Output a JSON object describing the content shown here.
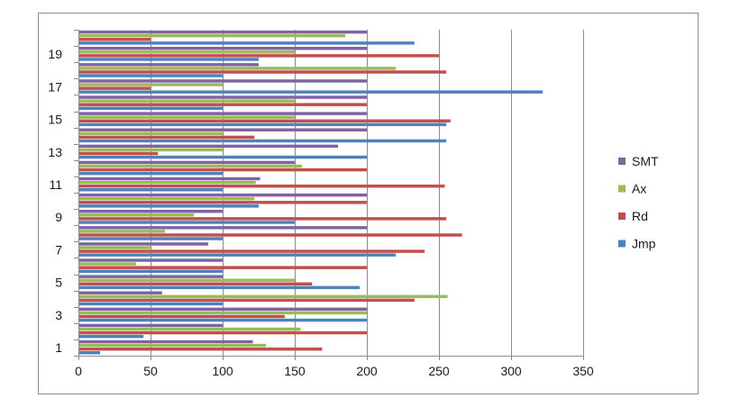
{
  "chart_data": {
    "type": "bar",
    "orientation": "horizontal",
    "title": "",
    "xlabel": "",
    "ylabel": "",
    "xlim": [
      0,
      350
    ],
    "x_ticks": [
      0,
      50,
      100,
      150,
      200,
      250,
      300,
      350
    ],
    "categories": [
      "1",
      "2",
      "3",
      "4",
      "5",
      "6",
      "7",
      "8",
      "9",
      "10",
      "11",
      "12",
      "13",
      "14",
      "15",
      "16",
      "17",
      "18",
      "19",
      "20"
    ],
    "y_tick_labels": [
      "1",
      "3",
      "5",
      "7",
      "9",
      "11",
      "13",
      "15",
      "17",
      "19"
    ],
    "grid": "vertical major gridlines",
    "legend_position": "right",
    "series": [
      {
        "name": "Jmp",
        "color": "#4f81bd",
        "values": [
          15,
          45,
          200,
          100,
          195,
          100,
          220,
          100,
          150,
          125,
          100,
          100,
          200,
          255,
          255,
          100,
          322,
          100,
          125,
          233
        ]
      },
      {
        "name": "Rd",
        "color": "#c0504d",
        "values": [
          169,
          200,
          143,
          233,
          162,
          200,
          240,
          266,
          255,
          200,
          254,
          200,
          55,
          122,
          258,
          200,
          50,
          255,
          250,
          50
        ]
      },
      {
        "name": "Ax",
        "color": "#9bbb59",
        "values": [
          130,
          154,
          200,
          256,
          150,
          40,
          50,
          60,
          80,
          122,
          123,
          155,
          100,
          100,
          150,
          150,
          100,
          220,
          150,
          185
        ]
      },
      {
        "name": "SMT",
        "color": "#8064a2",
        "values": [
          121,
          100,
          200,
          58,
          100,
          100,
          90,
          200,
          100,
          200,
          126,
          150,
          180,
          200,
          200,
          200,
          200,
          125,
          200,
          200
        ]
      }
    ]
  }
}
